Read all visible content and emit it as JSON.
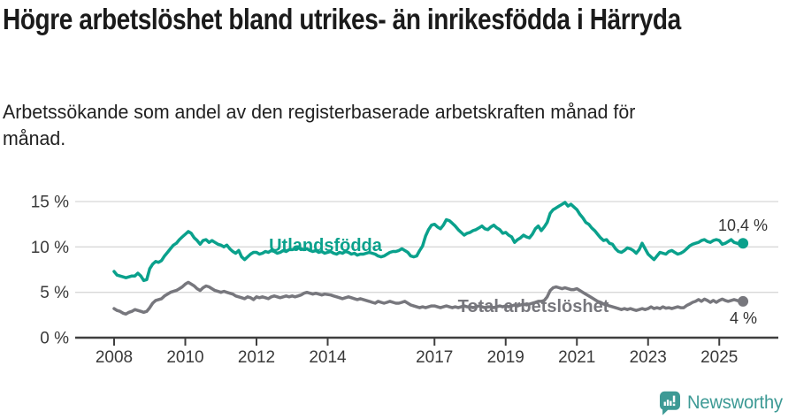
{
  "header": {
    "title": "Högre arbetslöshet bland utrikes- än inrikesfödda i Härryda",
    "subtitle": "Arbetssökande som andel av den registerbaserade arbetskraften månad för månad."
  },
  "footer": {
    "brand": "Newsworthy",
    "brand_color": "#3d9a95",
    "logo_icon": "newsworthy-speech-bubble-bar-chart-icon"
  },
  "chart_data": {
    "type": "line",
    "title": "Högre arbetslöshet bland utrikes- än inrikesfödda i Härryda",
    "subtitle": "Arbetssökande som andel av den registerbaserade arbetskraften månad för månad.",
    "unit": "%",
    "frequency": "monthly",
    "start_year": 2008,
    "start_month": 1,
    "xlim": [
      2007.0,
      2026.6
    ],
    "ylim": [
      0,
      15
    ],
    "grid": "horizontal",
    "x_tick_years": [
      2008,
      2010,
      2012,
      2014,
      2017,
      2019,
      2021,
      2023,
      2025
    ],
    "x_tick_labels": [
      "2008",
      "2010",
      "2012",
      "2014",
      "2017",
      "2019",
      "2021",
      "2023",
      "2025"
    ],
    "y_ticks": [
      {
        "value": 0,
        "label": "0 %"
      },
      {
        "value": 5,
        "label": "5 %"
      },
      {
        "value": 10,
        "label": "10 %"
      },
      {
        "value": 15,
        "label": "15 %"
      }
    ],
    "axis_color": "#3f3f3f",
    "gridline_color": "#d8d8d8",
    "series": [
      {
        "name": "Utlandsfödda",
        "color": "#0aa18c",
        "end_label": "10,4 %",
        "last_value": 10.4,
        "values": [
          7.3,
          6.9,
          6.8,
          6.7,
          6.6,
          6.7,
          6.8,
          6.8,
          7.1,
          6.8,
          6.3,
          6.4,
          7.6,
          8.1,
          8.4,
          8.3,
          8.5,
          9.0,
          9.4,
          9.8,
          10.2,
          10.4,
          10.8,
          11.1,
          11.4,
          11.7,
          11.5,
          11.0,
          10.7,
          10.3,
          10.7,
          10.8,
          10.5,
          10.7,
          10.5,
          10.3,
          10.2,
          10.0,
          10.2,
          9.8,
          9.5,
          9.3,
          9.6,
          8.9,
          8.6,
          8.9,
          9.2,
          9.4,
          9.4,
          9.2,
          9.3,
          9.5,
          9.4,
          9.6,
          9.5,
          9.3,
          9.4,
          9.6,
          9.5,
          9.7,
          9.7,
          9.8,
          9.9,
          9.8,
          9.7,
          9.8,
          9.6,
          9.5,
          9.6,
          9.4,
          9.5,
          9.3,
          9.4,
          9.5,
          9.3,
          9.2,
          9.4,
          9.3,
          9.5,
          9.4,
          9.2,
          9.3,
          9.1,
          9.2,
          9.2,
          9.3,
          9.4,
          9.3,
          9.2,
          9.0,
          8.9,
          9.0,
          9.2,
          9.4,
          9.5,
          9.5,
          9.6,
          9.8,
          9.6,
          9.4,
          9.0,
          8.9,
          9.0,
          9.6,
          10.1,
          11.2,
          11.9,
          12.4,
          12.5,
          12.2,
          12.0,
          12.4,
          13.0,
          12.9,
          12.6,
          12.3,
          11.9,
          11.6,
          11.3,
          11.5,
          11.6,
          11.8,
          11.9,
          12.1,
          12.3,
          12.0,
          11.9,
          12.2,
          12.4,
          12.1,
          11.9,
          11.5,
          11.6,
          11.3,
          11.1,
          10.5,
          10.8,
          11.0,
          11.3,
          11.1,
          11.0,
          11.4,
          12.0,
          12.3,
          11.8,
          12.2,
          12.7,
          13.7,
          14.1,
          14.3,
          14.5,
          14.7,
          14.9,
          14.5,
          14.7,
          14.4,
          14.1,
          13.6,
          13.2,
          12.7,
          12.5,
          12.1,
          11.8,
          11.4,
          11.0,
          10.7,
          10.8,
          10.4,
          10.3,
          9.8,
          9.5,
          9.4,
          9.6,
          9.9,
          9.8,
          9.6,
          9.3,
          9.7,
          10.4,
          9.8,
          9.2,
          8.9,
          8.6,
          9.0,
          9.4,
          9.3,
          9.2,
          9.5,
          9.6,
          9.4,
          9.2,
          9.3,
          9.5,
          9.8,
          10.1,
          10.3,
          10.4,
          10.5,
          10.7,
          10.8,
          10.6,
          10.5,
          10.7,
          10.8,
          10.7,
          10.3,
          10.4,
          10.6,
          10.8,
          10.5,
          10.4,
          10.3,
          10.4
        ]
      },
      {
        "name": "Total arbetslöshet",
        "color": "#77777d",
        "end_label": "4 %",
        "last_value": 4.0,
        "values": [
          3.2,
          3.0,
          2.9,
          2.7,
          2.6,
          2.8,
          2.9,
          3.1,
          3.0,
          2.9,
          2.8,
          2.9,
          3.3,
          3.8,
          4.1,
          4.2,
          4.3,
          4.6,
          4.8,
          5.0,
          5.1,
          5.2,
          5.4,
          5.6,
          5.9,
          6.1,
          5.9,
          5.7,
          5.4,
          5.2,
          5.5,
          5.7,
          5.6,
          5.4,
          5.2,
          5.1,
          5.0,
          5.1,
          5.0,
          4.9,
          4.8,
          4.6,
          4.5,
          4.4,
          4.3,
          4.5,
          4.4,
          4.2,
          4.5,
          4.4,
          4.5,
          4.4,
          4.3,
          4.5,
          4.6,
          4.5,
          4.4,
          4.5,
          4.6,
          4.5,
          4.6,
          4.5,
          4.6,
          4.7,
          4.9,
          5.0,
          4.9,
          4.8,
          4.9,
          4.8,
          4.7,
          4.8,
          4.75,
          4.7,
          4.6,
          4.5,
          4.4,
          4.3,
          4.4,
          4.5,
          4.4,
          4.3,
          4.2,
          4.3,
          4.2,
          4.1,
          4.0,
          3.9,
          3.8,
          4.0,
          3.9,
          3.8,
          3.9,
          4.0,
          3.9,
          3.8,
          3.8,
          3.9,
          4.0,
          3.8,
          3.6,
          3.5,
          3.4,
          3.3,
          3.4,
          3.3,
          3.4,
          3.5,
          3.5,
          3.4,
          3.3,
          3.4,
          3.5,
          3.4,
          3.3,
          3.4,
          3.3,
          3.4,
          3.5,
          3.4,
          3.4,
          3.3,
          3.4,
          3.5,
          3.4,
          3.3,
          3.4,
          3.4,
          3.3,
          3.4,
          3.5,
          3.4,
          3.5,
          3.4,
          3.5,
          3.6,
          3.5,
          3.6,
          3.7,
          3.6,
          3.7,
          3.8,
          3.9,
          4.0,
          4.0,
          4.1,
          4.5,
          5.2,
          5.5,
          5.6,
          5.5,
          5.4,
          5.5,
          5.4,
          5.3,
          5.3,
          5.4,
          5.2,
          5.0,
          4.8,
          4.6,
          4.4,
          4.2,
          4.0,
          3.9,
          3.7,
          3.6,
          3.5,
          3.4,
          3.3,
          3.2,
          3.1,
          3.2,
          3.1,
          3.2,
          3.1,
          3.0,
          3.1,
          3.2,
          3.1,
          3.2,
          3.4,
          3.2,
          3.3,
          3.2,
          3.4,
          3.25,
          3.3,
          3.2,
          3.3,
          3.4,
          3.3,
          3.3,
          3.55,
          3.7,
          3.9,
          4.0,
          4.2,
          4.0,
          4.25,
          4.1,
          3.9,
          4.1,
          3.9,
          4.1,
          4.25,
          4.1,
          4.0,
          4.1,
          4.2,
          4.1,
          4.0,
          4.0
        ]
      }
    ]
  }
}
